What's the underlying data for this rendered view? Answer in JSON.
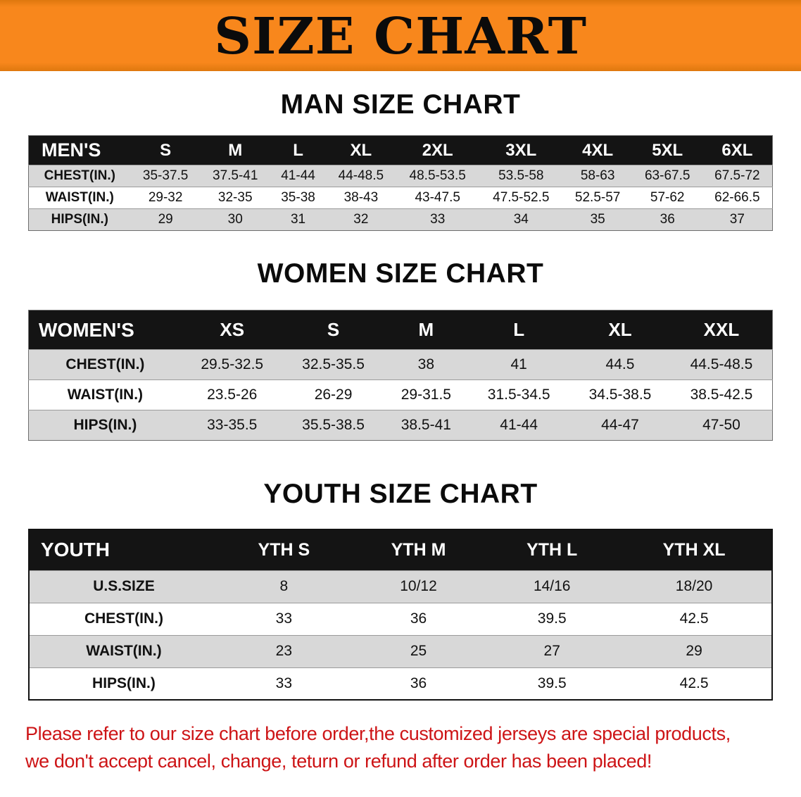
{
  "banner": {
    "title": "SIZE CHART"
  },
  "chart_data": [
    {
      "type": "table",
      "title": "MAN SIZE CHART",
      "label": "MEN'S",
      "sizes": [
        "S",
        "M",
        "L",
        "XL",
        "2XL",
        "3XL",
        "4XL",
        "5XL",
        "6XL"
      ],
      "rows": [
        {
          "label": "CHEST(IN.)",
          "values": [
            "35-37.5",
            "37.5-41",
            "41-44",
            "44-48.5",
            "48.5-53.5",
            "53.5-58",
            "58-63",
            "63-67.5",
            "67.5-72"
          ]
        },
        {
          "label": "WAIST(IN.)",
          "values": [
            "29-32",
            "32-35",
            "35-38",
            "38-43",
            "43-47.5",
            "47.5-52.5",
            "52.5-57",
            "57-62",
            "62-66.5"
          ]
        },
        {
          "label": "HIPS(IN.)",
          "values": [
            "29",
            "30",
            "31",
            "32",
            "33",
            "34",
            "35",
            "36",
            "37"
          ]
        }
      ]
    },
    {
      "type": "table",
      "title": "WOMEN SIZE CHART",
      "label": "WOMEN'S",
      "sizes": [
        "XS",
        "S",
        "M",
        "L",
        "XL",
        "XXL"
      ],
      "rows": [
        {
          "label": "CHEST(IN.)",
          "values": [
            "29.5-32.5",
            "32.5-35.5",
            "38",
            "41",
            "44.5",
            "44.5-48.5"
          ]
        },
        {
          "label": "WAIST(IN.)",
          "values": [
            "23.5-26",
            "26-29",
            "29-31.5",
            "31.5-34.5",
            "34.5-38.5",
            "38.5-42.5"
          ]
        },
        {
          "label": "HIPS(IN.)",
          "values": [
            "33-35.5",
            "35.5-38.5",
            "38.5-41",
            "41-44",
            "44-47",
            "47-50"
          ]
        }
      ]
    },
    {
      "type": "table",
      "title": "YOUTH SIZE CHART",
      "label": "YOUTH",
      "sizes": [
        "YTH S",
        "YTH M",
        "YTH L",
        "YTH XL"
      ],
      "rows": [
        {
          "label": "U.S.SIZE",
          "values": [
            "8",
            "10/12",
            "14/16",
            "18/20"
          ]
        },
        {
          "label": "CHEST(IN.)",
          "values": [
            "33",
            "36",
            "39.5",
            "42.5"
          ]
        },
        {
          "label": "WAIST(IN.)",
          "values": [
            "23",
            "25",
            "27",
            "29"
          ]
        },
        {
          "label": "HIPS(IN.)",
          "values": [
            "33",
            "36",
            "39.5",
            "42.5"
          ]
        }
      ]
    }
  ],
  "disclaimer": {
    "line1": "Please refer to our size chart before order,the customized jerseys are special products,",
    "line2": "we don't accept cancel, change, teturn or refund after order has been placed!"
  },
  "colors": {
    "banner_orange": "#f8871c",
    "header_black": "#141414",
    "row_shade": "#d8d8d8",
    "disclaimer_red": "#cd1416"
  }
}
